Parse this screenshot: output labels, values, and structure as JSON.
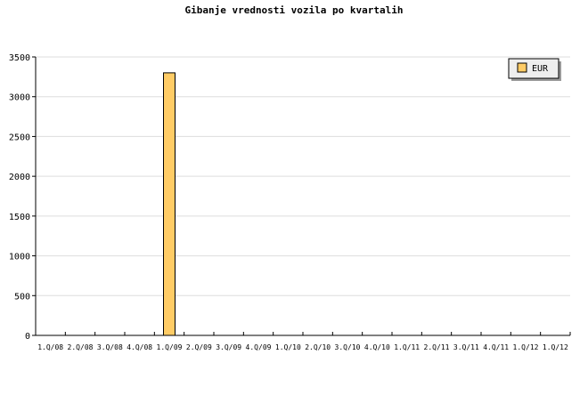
{
  "chart_data": {
    "type": "bar",
    "title": "Gibanje vrednosti vozila po kvartalih",
    "categories": [
      "1.Q/08",
      "2.Q/08",
      "3.Q/08",
      "4.Q/08",
      "1.Q/09",
      "2.Q/09",
      "3.Q/09",
      "4.Q/09",
      "1.Q/10",
      "2.Q/10",
      "3.Q/10",
      "4.Q/10",
      "1.Q/11",
      "2.Q/11",
      "3.Q/11",
      "4.Q/11",
      "1.Q/12",
      "1.Q/12"
    ],
    "series": [
      {
        "name": "EUR",
        "values": [
          0,
          0,
          0,
          0,
          3300,
          0,
          0,
          0,
          0,
          0,
          0,
          0,
          0,
          0,
          0,
          0,
          0,
          0
        ],
        "color": "#ffcc66"
      }
    ],
    "yticks": [
      0,
      500,
      1000,
      1500,
      2000,
      2500,
      3000,
      3500
    ],
    "ylim": [
      0,
      3500
    ],
    "grid": true,
    "legend_position": "top-right"
  }
}
